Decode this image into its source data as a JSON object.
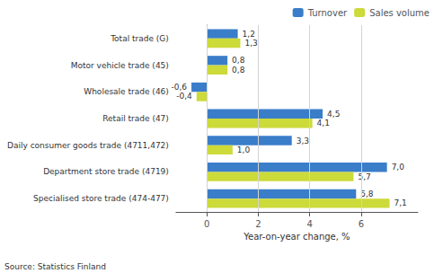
{
  "chart_data": {
    "type": "bar",
    "orientation": "horizontal",
    "categories": [
      "Specialised store trade (474-477)",
      "Department store trade (4719)",
      "Daily consumer goods trade (4711,472)",
      "Retail trade (47)",
      "Wholesale trade (46)",
      "Motor vehicle trade (45)",
      "Total trade (G)"
    ],
    "series": [
      {
        "name": "Turnover",
        "color": "#3A7DC9",
        "values": [
          5.8,
          7.0,
          3.3,
          4.5,
          -0.6,
          0.8,
          1.2
        ],
        "value_labels": [
          "5,8",
          "7,0",
          "3,3",
          "4,5",
          "-0,6",
          "0,8",
          "1,2"
        ]
      },
      {
        "name": "Sales volume",
        "color": "#CCDA3A",
        "values": [
          7.1,
          5.7,
          1.0,
          4.1,
          -0.4,
          0.8,
          1.3
        ],
        "value_labels": [
          "7,1",
          "5,7",
          "1,0",
          "4,1",
          "-0,4",
          "0,8",
          "1,3"
        ]
      }
    ],
    "xlabel": "Year-on-year change, %",
    "xlim": [
      -1.2,
      8.2
    ],
    "xticks": [
      0,
      2,
      4,
      6
    ],
    "grid": true,
    "legend": "upper right",
    "data_labels": true,
    "annotations": [
      "Source: Statistics Finland"
    ]
  }
}
